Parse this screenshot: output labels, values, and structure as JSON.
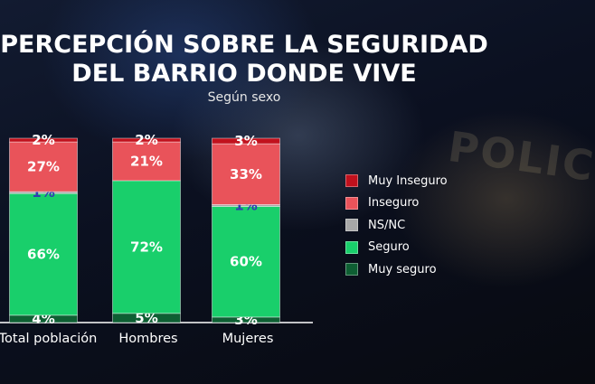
{
  "title_line1": "PERCEPCIÓN SOBRE LA SEGURIDAD",
  "title_line2": "DEL BARRIO DONDE VIVE",
  "subtitle": "Según sexo",
  "background_text": "POLICIA",
  "colors": {
    "muy_inseguro": "#c1111d",
    "inseguro": "#e9535a",
    "ns_nc": "#a7a7a7",
    "seguro": "#19cf6b",
    "muy_seguro": "#0e5f33"
  },
  "chart_data": {
    "type": "bar",
    "stacked": true,
    "title": "PERCEPCIÓN SOBRE LA SEGURIDAD DEL BARRIO DONDE VIVE",
    "subtitle": "Según sexo",
    "categories": [
      "Total población",
      "Hombres",
      "Mujeres"
    ],
    "series": [
      {
        "name": "Muy seguro",
        "values": [
          4,
          5,
          3
        ],
        "labels": [
          "4%",
          "5%",
          "3%"
        ]
      },
      {
        "name": "Seguro",
        "values": [
          66,
          72,
          60
        ],
        "labels": [
          "66%",
          "72%",
          "60%"
        ]
      },
      {
        "name": "NS/NC",
        "values": [
          1,
          0,
          1
        ],
        "labels": [
          "1%",
          "",
          "1%"
        ]
      },
      {
        "name": "Inseguro",
        "values": [
          27,
          21,
          33
        ],
        "labels": [
          "27%",
          "21%",
          "33%"
        ]
      },
      {
        "name": "Muy Inseguro",
        "values": [
          2,
          2,
          3
        ],
        "labels": [
          "2%",
          "2%",
          "3%"
        ]
      }
    ],
    "ylim": [
      0,
      100
    ],
    "legend": [
      "Muy Inseguro",
      "Inseguro",
      "NS/NC",
      "Seguro",
      "Muy seguro"
    ],
    "legend_position": "right",
    "grid": false
  }
}
